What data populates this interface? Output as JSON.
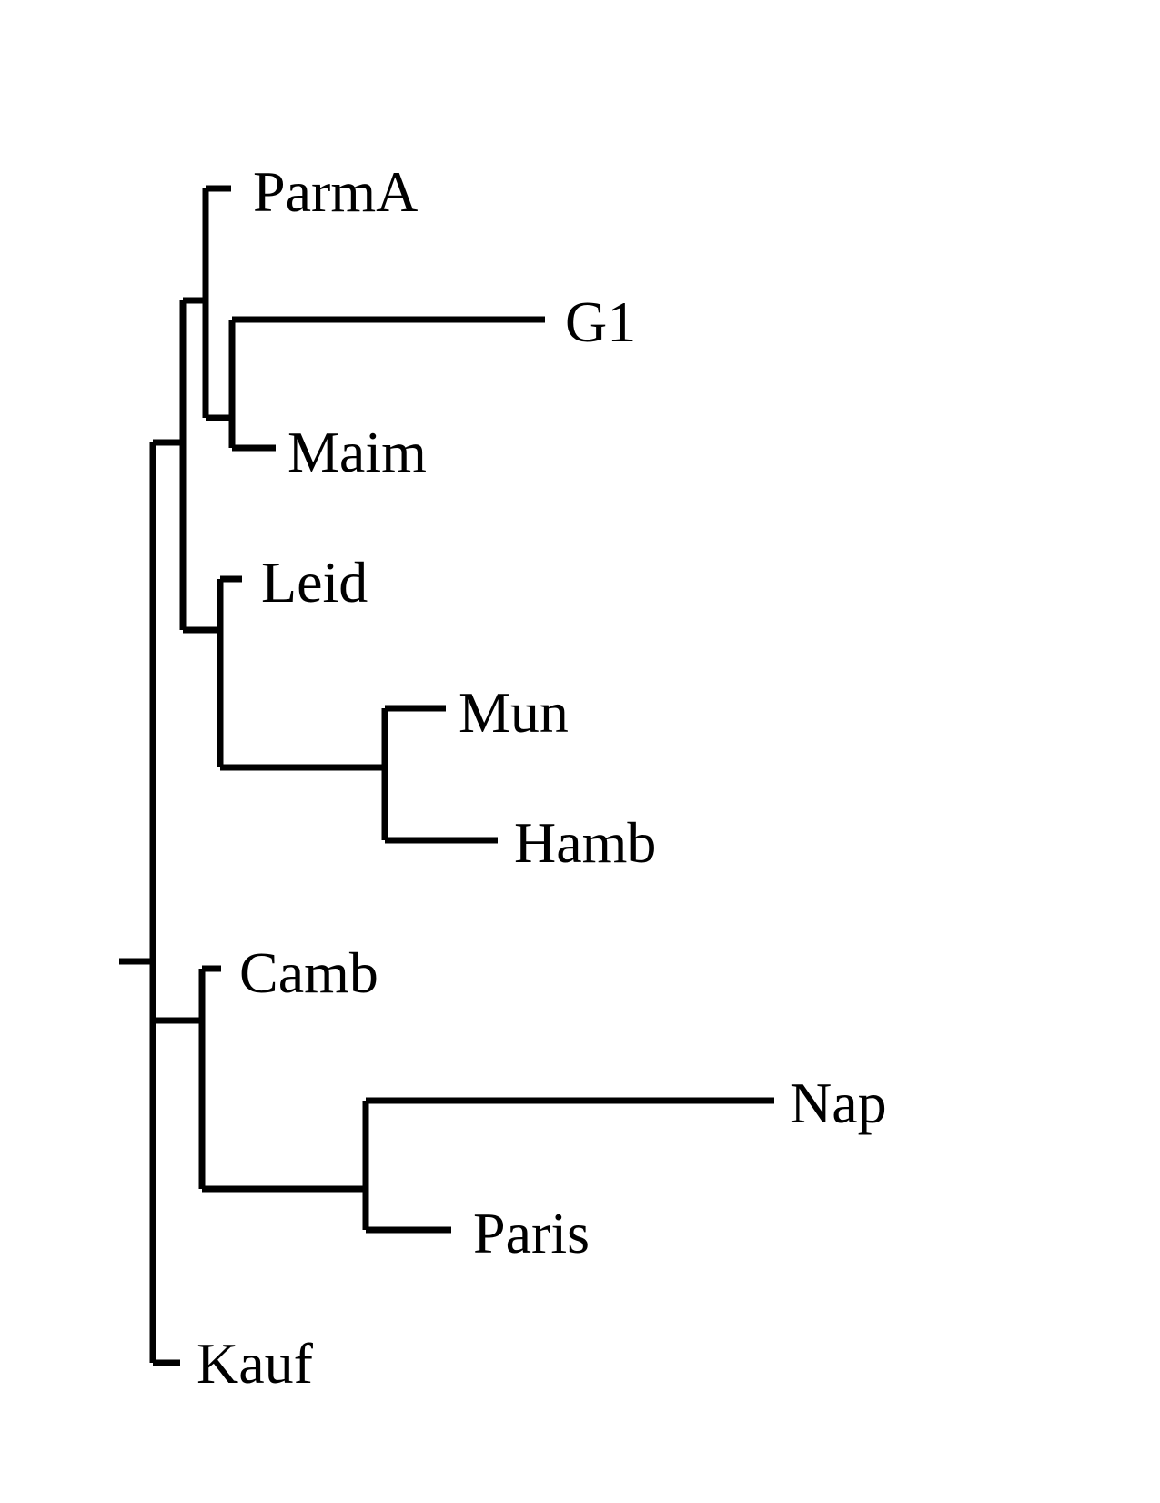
{
  "tree": {
    "leaves": [
      {
        "id": "parma",
        "label": "ParmA"
      },
      {
        "id": "g1",
        "label": "G1"
      },
      {
        "id": "maim",
        "label": "Maim"
      },
      {
        "id": "leid",
        "label": "Leid"
      },
      {
        "id": "mun",
        "label": "Mun"
      },
      {
        "id": "hamb",
        "label": "Hamb"
      },
      {
        "id": "camb",
        "label": "Camb"
      },
      {
        "id": "nap",
        "label": "Nap"
      },
      {
        "id": "paris",
        "label": "Paris"
      },
      {
        "id": "kauf",
        "label": "Kauf"
      }
    ],
    "topology": "(((ParmA,(G1,Maim)),(Leid,(Mun,Hamb))),(Camb,(Nap,Paris)),Kauf)"
  }
}
